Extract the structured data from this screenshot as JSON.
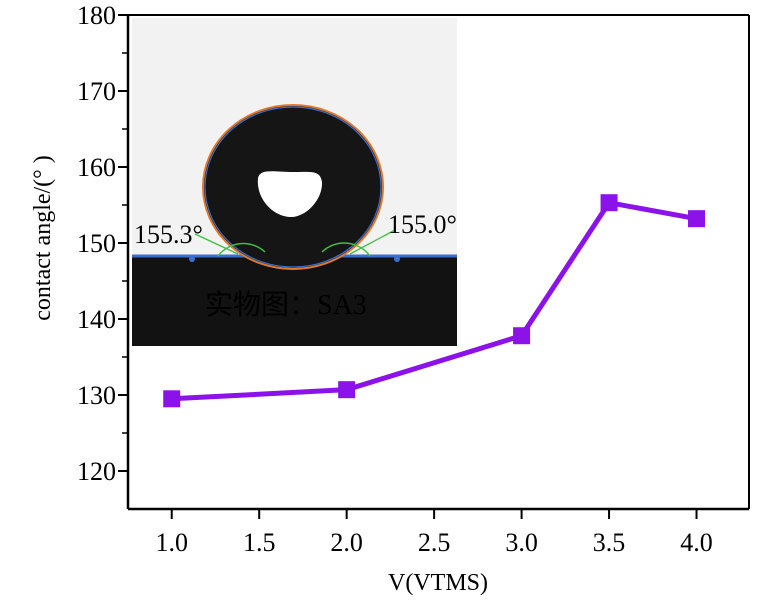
{
  "chart_data": {
    "type": "line",
    "title": "",
    "xlabel": "V(VTMS)",
    "ylabel": "contact angle/(°  )",
    "xlim": [
      0.75,
      4.3
    ],
    "ylim": [
      115,
      180
    ],
    "x_ticks": [
      1.0,
      1.5,
      2.0,
      2.5,
      3.0,
      3.5,
      4.0
    ],
    "x_tick_labels": [
      "1.0",
      "1.5",
      "2.0",
      "2.5",
      "3.0",
      "3.5",
      "4.0"
    ],
    "y_ticks": [
      120,
      130,
      140,
      150,
      160,
      170,
      180
    ],
    "y_tick_labels": [
      "120",
      "130",
      "140",
      "150",
      "160",
      "170",
      "180"
    ],
    "series": [
      {
        "x": [
          1.0,
          2.0,
          3.0,
          3.5,
          4.0
        ],
        "values": [
          129.5,
          130.7,
          137.8,
          155.3,
          153.2
        ],
        "color": "#8b12e8",
        "marker": "square"
      }
    ],
    "grid": false,
    "legend": "none",
    "inset": {
      "left_angle_label": "155.3°",
      "right_angle_label": "155.0°",
      "caption": "实物图：SA3"
    }
  }
}
